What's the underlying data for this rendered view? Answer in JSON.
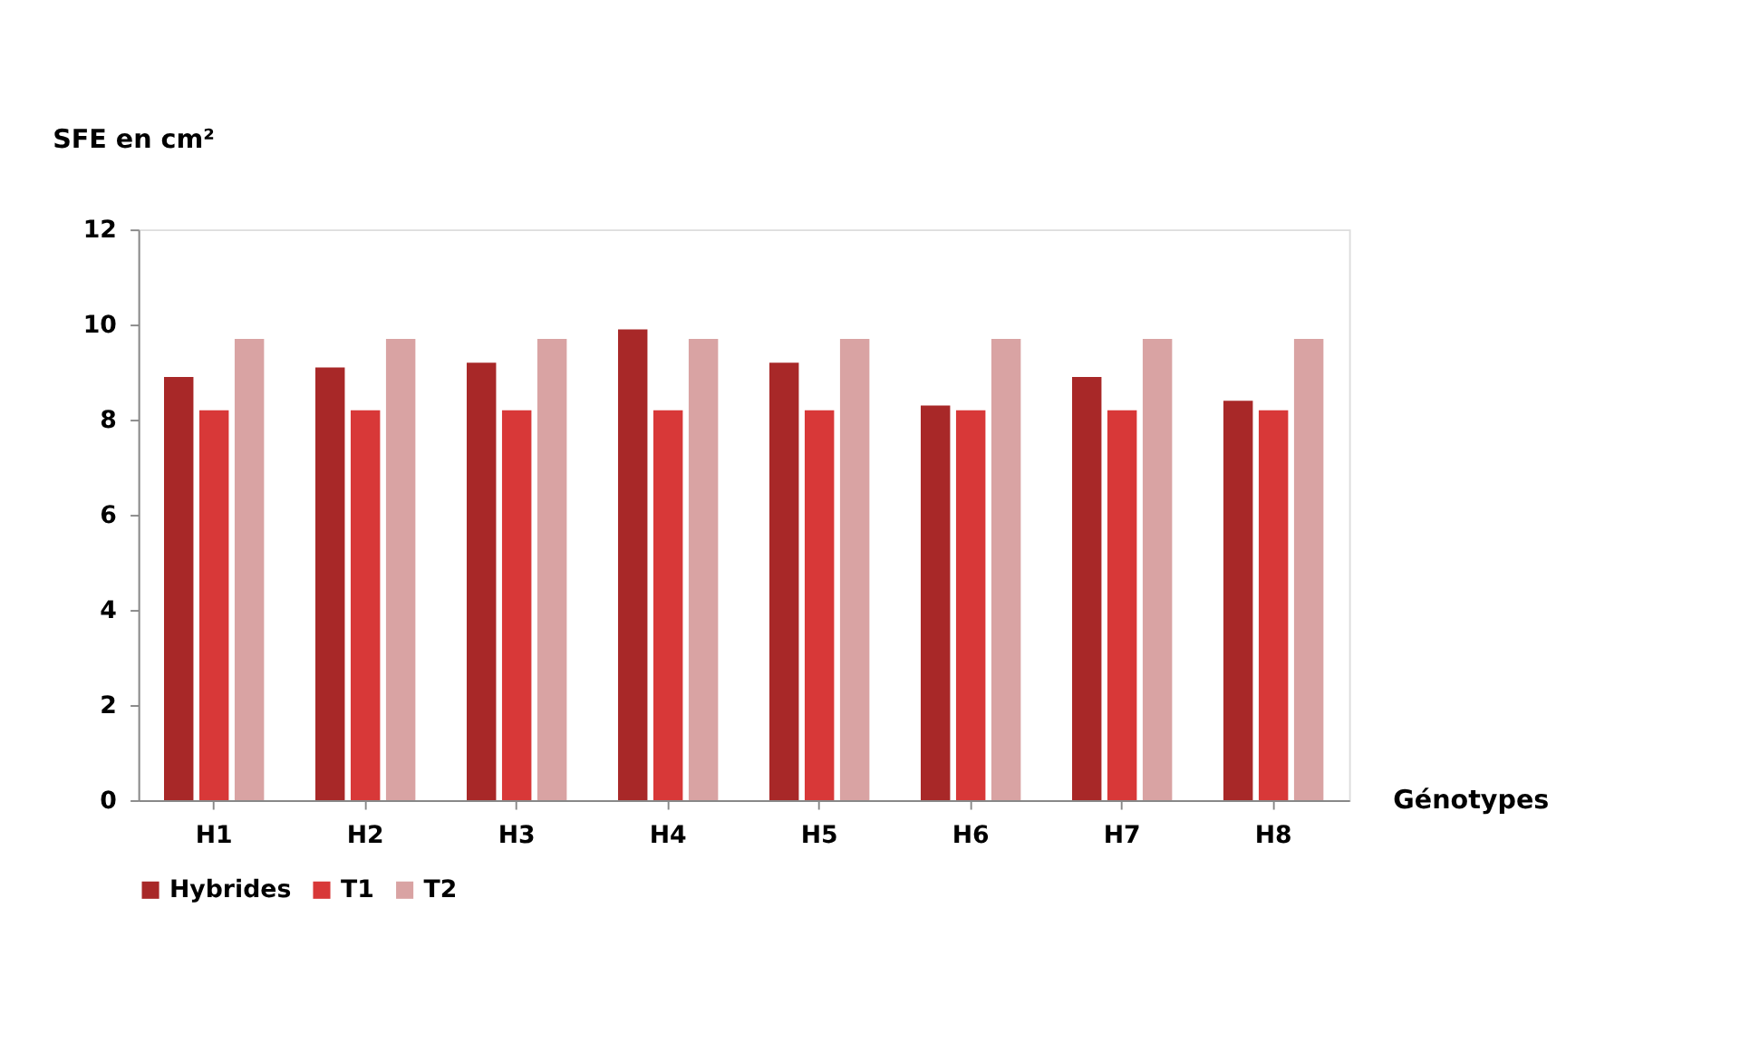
{
  "chart_data": {
    "type": "bar",
    "ylabel": "SFE en cm²",
    "xlabel": "Génotypes",
    "categories": [
      "H1",
      "H2",
      "H3",
      "H4",
      "H5",
      "H6",
      "H7",
      "H8"
    ],
    "series": [
      {
        "name": "Hybrides",
        "color": "#a82828",
        "values": [
          8.9,
          9.1,
          9.2,
          9.9,
          9.2,
          8.3,
          8.9,
          8.4
        ]
      },
      {
        "name": "T1",
        "color": "#d83838",
        "values": [
          8.2,
          8.2,
          8.2,
          8.2,
          8.2,
          8.2,
          8.2,
          8.2
        ]
      },
      {
        "name": "T2",
        "color": "#d9a3a3",
        "values": [
          9.7,
          9.7,
          9.7,
          9.7,
          9.7,
          9.7,
          9.7,
          9.7
        ]
      }
    ],
    "ylim": [
      0,
      12
    ],
    "yticks": [
      0,
      2,
      4,
      6,
      8,
      10,
      12
    ],
    "grid": false,
    "legend": "bottom"
  }
}
